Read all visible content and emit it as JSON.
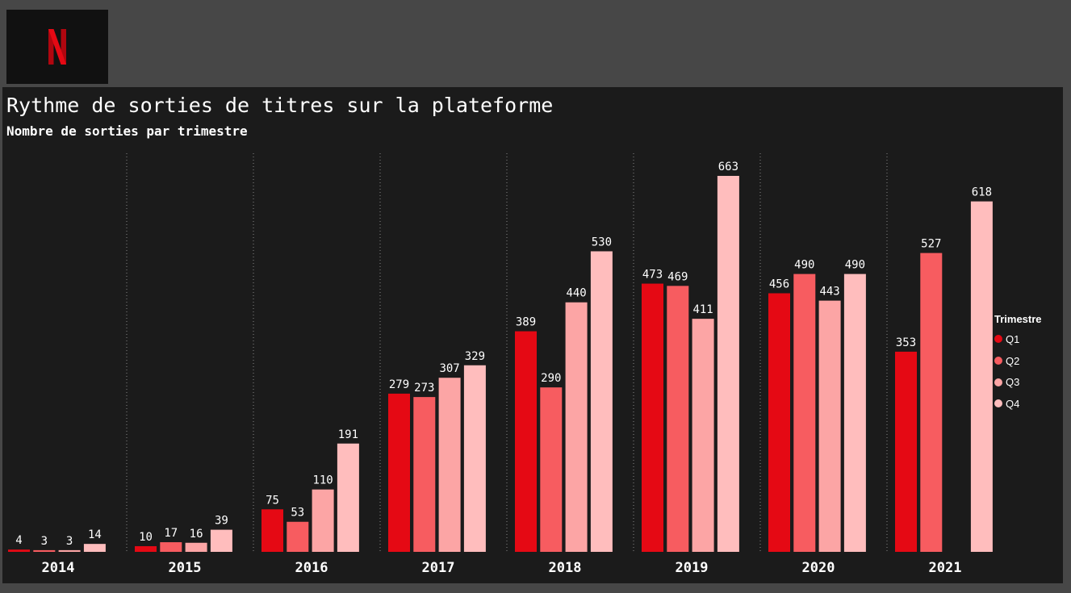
{
  "logo": {
    "alt": "N"
  },
  "chart_data": {
    "type": "bar",
    "title": "Rythme de sorties de titres sur la plateforme",
    "subtitle": "Nombre de sorties par trimestre",
    "categories": [
      "2014",
      "2015",
      "2016",
      "2017",
      "2018",
      "2019",
      "2020",
      "2021"
    ],
    "series": [
      {
        "name": "Q1",
        "color": "#e50914",
        "values": [
          4,
          10,
          75,
          279,
          389,
          473,
          456,
          353
        ]
      },
      {
        "name": "Q2",
        "color": "#f75c60",
        "values": [
          3,
          17,
          53,
          273,
          290,
          469,
          490,
          527
        ]
      },
      {
        "name": "Q3",
        "color": "#fca5a5",
        "values": [
          3,
          16,
          110,
          307,
          440,
          411,
          443,
          null
        ]
      },
      {
        "name": "Q4",
        "color": "#ffbdbd",
        "values": [
          14,
          39,
          191,
          329,
          530,
          663,
          490,
          618
        ]
      }
    ],
    "legend": {
      "title": "Trimestre",
      "position": "right"
    },
    "ylim": [
      0,
      663
    ],
    "grid": false,
    "data_labels": true
  }
}
